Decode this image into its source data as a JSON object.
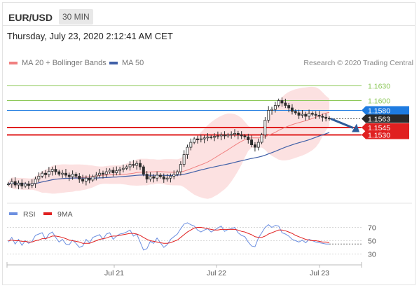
{
  "header": {
    "symbol": "EUR/USD",
    "timeframe": "30 MIN"
  },
  "datetime": "Thursday, July 23, 2020 2:12:41 AM CET",
  "legend": {
    "ma20_bb": "MA 20 + Bollinger Bands",
    "ma50": "MA 50"
  },
  "credit": "Research © 2020 Trading Central",
  "colors": {
    "candle": "#2d2d2d",
    "bollinger_fill": "#fbdcdc",
    "ma20": "#f08080",
    "ma50": "#4060a8",
    "resistance": "#8cc858",
    "pivot_blue": "#1e7be0",
    "support_red": "#e02020",
    "rsi": "#6c8fe0",
    "rsi_ma": "#e02020"
  },
  "chart_data": [
    {
      "type": "candlestick",
      "x_ticks": [
        "Jul 21",
        "Jul 22",
        "Jul 23"
      ],
      "ylim": [
        1.1398,
        1.1655
      ],
      "levels": [
        {
          "label": "1.1630",
          "value": 1.163,
          "kind": "resistance"
        },
        {
          "label": "1.1600",
          "value": 1.16,
          "kind": "resistance"
        },
        {
          "label": "1.1580",
          "value": 1.158,
          "kind": "pivot"
        },
        {
          "label": "1.1563",
          "value": 1.1563,
          "kind": "last"
        },
        {
          "label": "1.1545",
          "value": 1.1545,
          "kind": "support"
        },
        {
          "label": "1.1530",
          "value": 1.153,
          "kind": "support"
        }
      ],
      "series": [
        {
          "name": "MA 20 + Bollinger Bands"
        },
        {
          "name": "MA 50"
        }
      ],
      "closes": [
        1.143,
        1.1435,
        1.1428,
        1.1432,
        1.1426,
        1.143,
        1.1427,
        1.1431,
        1.144,
        1.1446,
        1.1452,
        1.1449,
        1.1456,
        1.146,
        1.1455,
        1.145,
        1.1452,
        1.1448,
        1.1445,
        1.145,
        1.1446,
        1.144,
        1.1436,
        1.1442,
        1.1438,
        1.1445,
        1.1448,
        1.1452,
        1.145,
        1.1455,
        1.1458,
        1.1453,
        1.1457,
        1.146,
        1.1462,
        1.1465,
        1.147,
        1.1468,
        1.1472,
        1.1465,
        1.145,
        1.144,
        1.1445,
        1.1442,
        1.1448,
        1.1445,
        1.144,
        1.1442,
        1.1446,
        1.145,
        1.1455,
        1.147,
        1.149,
        1.1505,
        1.1515,
        1.1522,
        1.152,
        1.1522,
        1.1524,
        1.1526,
        1.1525,
        1.1527,
        1.1528,
        1.153,
        1.1528,
        1.153,
        1.1531,
        1.1533,
        1.153,
        1.1528,
        1.1526,
        1.152,
        1.151,
        1.1505,
        1.1515,
        1.153,
        1.156,
        1.158,
        1.1582,
        1.159,
        1.16,
        1.1595,
        1.159,
        1.1585,
        1.1578,
        1.1575,
        1.157,
        1.1572,
        1.1568,
        1.1574,
        1.1572,
        1.157,
        1.1568,
        1.1566,
        1.1564,
        1.1563
      ],
      "projection": {
        "from": 1.1563,
        "to": 1.154
      }
    },
    {
      "type": "line",
      "series": [
        {
          "name": "RSI"
        },
        {
          "name": "9MA"
        }
      ],
      "y_ticks": [
        70,
        50,
        30
      ],
      "ylim": [
        20,
        80
      ],
      "rsi": [
        48,
        55,
        45,
        52,
        43,
        50,
        46,
        49,
        58,
        60,
        62,
        52,
        60,
        63,
        55,
        48,
        52,
        45,
        44,
        51,
        46,
        40,
        42,
        52,
        47,
        55,
        57,
        59,
        52,
        60,
        62,
        52,
        57,
        60,
        61,
        63,
        66,
        57,
        60,
        48,
        36,
        38,
        49,
        46,
        54,
        47,
        40,
        44,
        52,
        56,
        60,
        68,
        75,
        77,
        74,
        72,
        66,
        63,
        66,
        68,
        63,
        66,
        69,
        72,
        64,
        67,
        68,
        70,
        62,
        58,
        56,
        48,
        42,
        41,
        54,
        62,
        70,
        74,
        70,
        73,
        72,
        62,
        60,
        57,
        52,
        50,
        48,
        51,
        47,
        52,
        50,
        48,
        47,
        46,
        45,
        45
      ],
      "rsi_ma": [
        50,
        51,
        50,
        50,
        49,
        49,
        48,
        48,
        50,
        51,
        53,
        53,
        55,
        57,
        57,
        56,
        55,
        53,
        51,
        50,
        49,
        48,
        46,
        46,
        46,
        48,
        50,
        52,
        53,
        54,
        56,
        57,
        57,
        58,
        59,
        60,
        61,
        61,
        60,
        58,
        55,
        52,
        50,
        49,
        48,
        47,
        46,
        46,
        47,
        49,
        51,
        55,
        59,
        63,
        66,
        69,
        70,
        70,
        69,
        68,
        67,
        66,
        66,
        67,
        67,
        67,
        67,
        67,
        66,
        64,
        63,
        61,
        59,
        56,
        55,
        55,
        57,
        60,
        62,
        64,
        66,
        66,
        65,
        63,
        61,
        58,
        56,
        54,
        52,
        51,
        50,
        50,
        49,
        48,
        48,
        47
      ]
    }
  ]
}
